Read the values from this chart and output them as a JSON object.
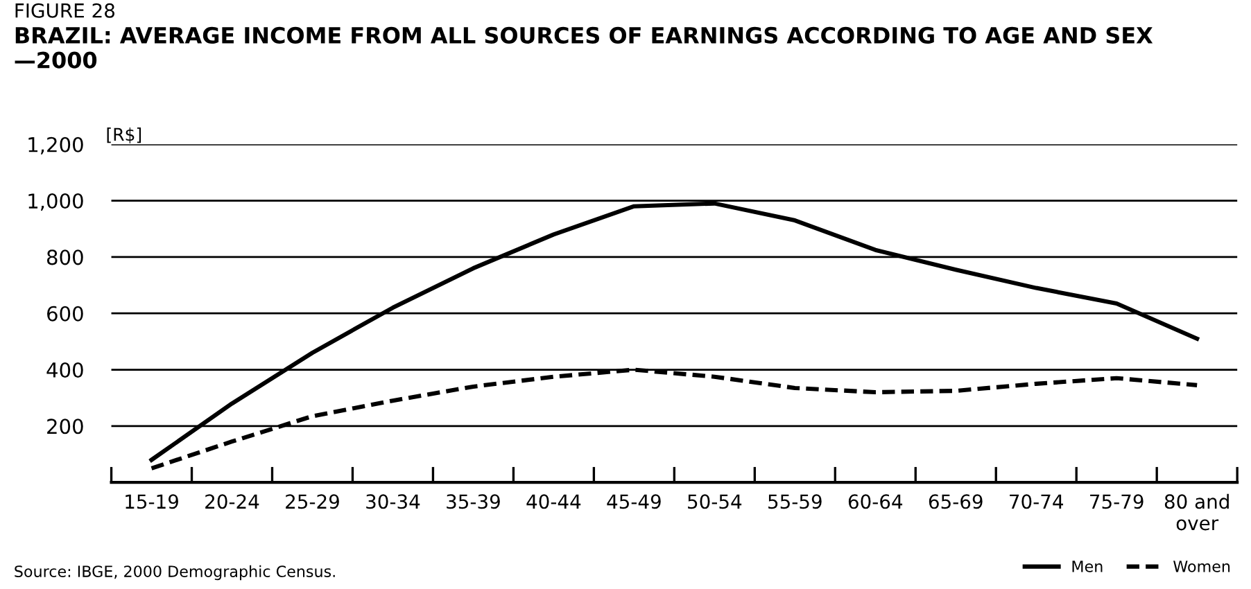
{
  "chart_data": {
    "type": "line",
    "title": "BRAZIL: AVERAGE INCOME FROM ALL SOURCES OF EARNINGS ACCORDING TO AGE AND SEX\n—2000",
    "ylabel": "[R$]",
    "annotations": [
      "FIGURE 28",
      "Source: IBGE, 2000 Demographic Census."
    ],
    "categories": [
      "15-19",
      "20-24",
      "25-29",
      "30-34",
      "35-39",
      "40-44",
      "45-49",
      "50-54",
      "55-59",
      "60-64",
      "65-69",
      "70-74",
      "75-79",
      "80 and\nover"
    ],
    "series": [
      {
        "name": "Men",
        "color": "#000000",
        "line_style": "solid",
        "values": [
          80,
          280,
          460,
          620,
          760,
          880,
          980,
          990,
          930,
          825,
          755,
          690,
          635,
          510
        ]
      },
      {
        "name": "Women",
        "color": "#000000",
        "line_style": "dashed",
        "values": [
          50,
          145,
          235,
          290,
          340,
          375,
          400,
          375,
          335,
          320,
          325,
          350,
          370,
          345
        ]
      }
    ],
    "ylim": [
      0,
      1200
    ],
    "yticks": [
      200,
      400,
      600,
      800,
      {
        "value": 1000,
        "label": "1,000"
      },
      {
        "value": 1200,
        "label": "1,200"
      }
    ],
    "grid": "y",
    "legend": "bottom right",
    "marker": "none"
  }
}
